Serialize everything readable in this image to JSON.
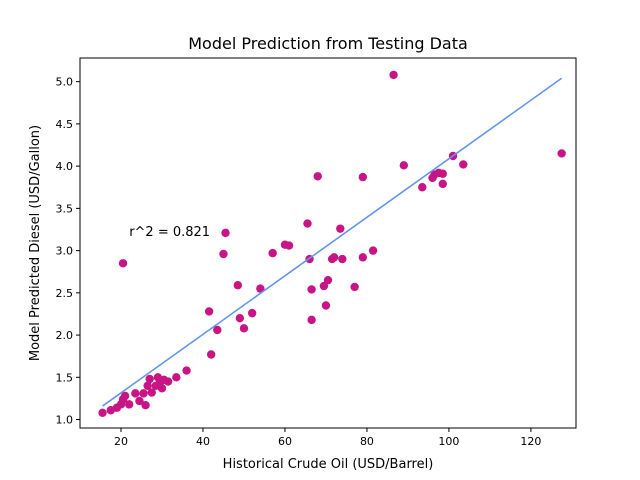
{
  "chart_data": {
    "type": "scatter",
    "title": "Model Prediction from Testing Data",
    "xlabel": "Historical Crude Oil (USD/Barrel)",
    "ylabel": "Model Predicted Diesel (USD/Gallon)",
    "xlim": [
      10,
      131
    ],
    "ylim": [
      0.9,
      5.28
    ],
    "xticks": [
      20,
      40,
      60,
      80,
      100,
      120
    ],
    "xtick_labels": [
      "20",
      "40",
      "60",
      "80",
      "100",
      "120"
    ],
    "yticks": [
      1.0,
      1.5,
      2.0,
      2.5,
      3.0,
      3.5,
      4.0,
      4.5,
      5.0
    ],
    "ytick_labels": [
      "1.0",
      "1.5",
      "2.0",
      "2.5",
      "3.0",
      "3.5",
      "4.0",
      "4.5",
      "5.0"
    ],
    "grid": false,
    "annotation": {
      "text": "r^2 = 0.821",
      "x": 22,
      "y": 3.22
    },
    "point_color": "#c71585",
    "line_color": "#6495ed",
    "fit_line": {
      "x": [
        15.5,
        127.5
      ],
      "y": [
        1.16,
        5.04
      ]
    },
    "points": [
      {
        "x": 15.5,
        "y": 1.08
      },
      {
        "x": 17.5,
        "y": 1.11
      },
      {
        "x": 19.0,
        "y": 1.14
      },
      {
        "x": 20.0,
        "y": 1.18
      },
      {
        "x": 20.5,
        "y": 1.24
      },
      {
        "x": 21.0,
        "y": 1.28
      },
      {
        "x": 22.0,
        "y": 1.18
      },
      {
        "x": 23.5,
        "y": 1.31
      },
      {
        "x": 24.5,
        "y": 1.22
      },
      {
        "x": 25.5,
        "y": 1.31
      },
      {
        "x": 26.0,
        "y": 1.17
      },
      {
        "x": 26.5,
        "y": 1.4
      },
      {
        "x": 27.0,
        "y": 1.48
      },
      {
        "x": 27.5,
        "y": 1.32
      },
      {
        "x": 28.5,
        "y": 1.4
      },
      {
        "x": 29.0,
        "y": 1.5
      },
      {
        "x": 29.5,
        "y": 1.44
      },
      {
        "x": 30.0,
        "y": 1.37
      },
      {
        "x": 30.5,
        "y": 1.47
      },
      {
        "x": 31.5,
        "y": 1.45
      },
      {
        "x": 33.5,
        "y": 1.5
      },
      {
        "x": 36.0,
        "y": 1.58
      },
      {
        "x": 20.5,
        "y": 2.85
      },
      {
        "x": 42.0,
        "y": 1.77
      },
      {
        "x": 41.5,
        "y": 2.28
      },
      {
        "x": 43.5,
        "y": 2.06
      },
      {
        "x": 45.0,
        "y": 2.96
      },
      {
        "x": 45.5,
        "y": 3.21
      },
      {
        "x": 48.5,
        "y": 2.59
      },
      {
        "x": 49.0,
        "y": 2.2
      },
      {
        "x": 50.0,
        "y": 2.08
      },
      {
        "x": 52.0,
        "y": 2.26
      },
      {
        "x": 54.0,
        "y": 2.55
      },
      {
        "x": 57.0,
        "y": 2.97
      },
      {
        "x": 60.0,
        "y": 3.07
      },
      {
        "x": 61.0,
        "y": 3.06
      },
      {
        "x": 65.5,
        "y": 3.32
      },
      {
        "x": 66.0,
        "y": 2.9
      },
      {
        "x": 66.5,
        "y": 2.18
      },
      {
        "x": 66.5,
        "y": 2.54
      },
      {
        "x": 68.0,
        "y": 3.88
      },
      {
        "x": 69.5,
        "y": 2.58
      },
      {
        "x": 70.0,
        "y": 2.35
      },
      {
        "x": 70.5,
        "y": 2.65
      },
      {
        "x": 71.5,
        "y": 2.9
      },
      {
        "x": 72.0,
        "y": 2.92
      },
      {
        "x": 73.5,
        "y": 3.26
      },
      {
        "x": 74.0,
        "y": 2.9
      },
      {
        "x": 77.0,
        "y": 2.57
      },
      {
        "x": 79.0,
        "y": 2.92
      },
      {
        "x": 79.0,
        "y": 3.87
      },
      {
        "x": 81.5,
        "y": 3.0
      },
      {
        "x": 86.5,
        "y": 5.08
      },
      {
        "x": 89.0,
        "y": 4.01
      },
      {
        "x": 93.5,
        "y": 3.75
      },
      {
        "x": 96.0,
        "y": 3.86
      },
      {
        "x": 96.5,
        "y": 3.9
      },
      {
        "x": 97.5,
        "y": 3.92
      },
      {
        "x": 98.5,
        "y": 3.91
      },
      {
        "x": 98.5,
        "y": 3.79
      },
      {
        "x": 101.0,
        "y": 4.12
      },
      {
        "x": 103.5,
        "y": 4.02
      },
      {
        "x": 127.5,
        "y": 4.15
      }
    ]
  }
}
